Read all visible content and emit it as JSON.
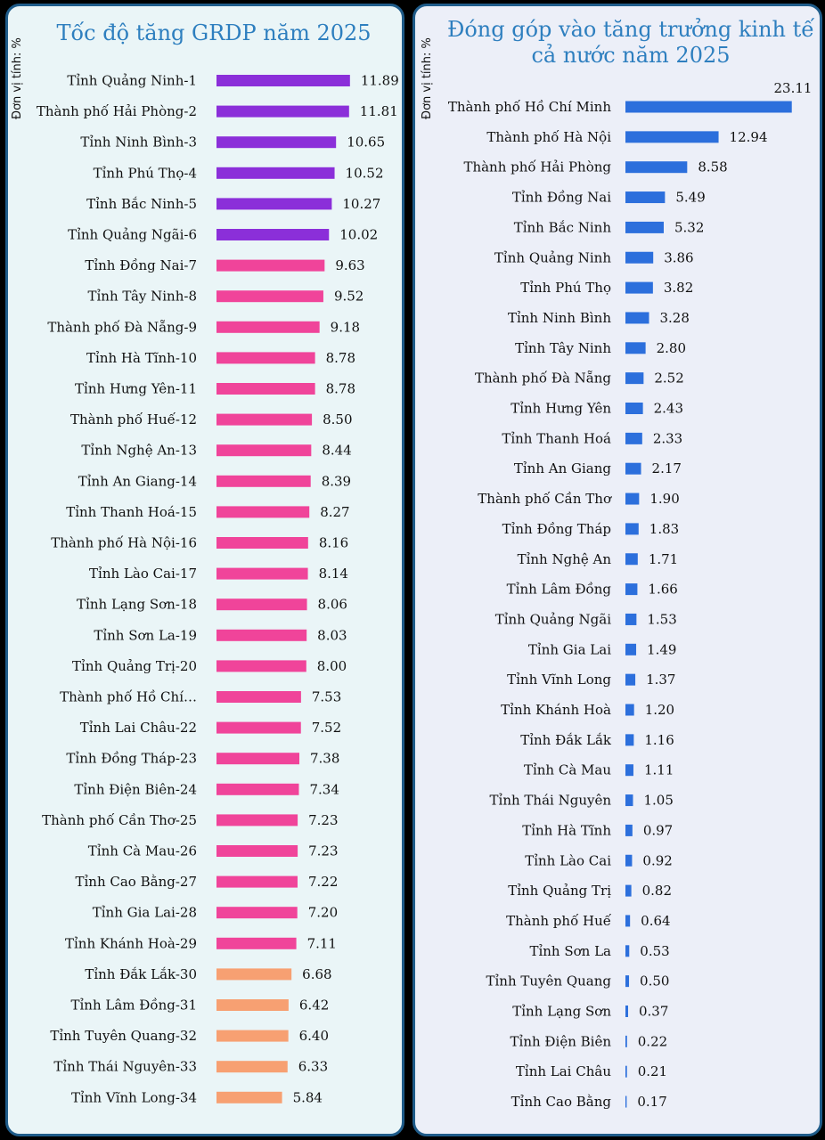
{
  "left": {
    "title": "Tốc độ tăng GRDP năm 2025",
    "unit_label": "Đơn vị tính: %"
  },
  "right": {
    "title_line1": "Đóng góp vào tăng trưởng kinh tế",
    "title_line2": "cả nước năm 2025",
    "unit_label": "Đơn vị tính: %"
  },
  "chart_data": [
    {
      "type": "bar",
      "orientation": "horizontal",
      "title": "Tốc độ tăng GRDP năm 2025",
      "ylabel": "Đơn vị tính: %",
      "colors": {
        "top_group": "#8b2fd9",
        "middle_group": "#f0449a",
        "bottom_group": "#f7a072"
      },
      "categories": [
        "Tỉnh Quảng Ninh-1",
        "Thành phố Hải Phòng-2",
        "Tỉnh Ninh Bình-3",
        "Tỉnh Phú Thọ-4",
        "Tỉnh Bắc Ninh-5",
        "Tỉnh Quảng Ngãi-6",
        "Tỉnh Đồng Nai-7",
        "Tỉnh Tây Ninh-8",
        "Thành phố Đà Nẵng-9",
        "Tỉnh Hà Tĩnh-10",
        "Tỉnh Hưng Yên-11",
        "Thành phố Huế-12",
        "Tỉnh Nghệ An-13",
        "Tỉnh An Giang-14",
        "Tỉnh Thanh Hoá-15",
        "Thành phố Hà Nội-16",
        "Tỉnh Lào Cai-17",
        "Tỉnh Lạng Sơn-18",
        "Tỉnh Sơn La-19",
        "Tỉnh Quảng Trị-20",
        "Thành phố Hồ Chí…",
        "Tỉnh Lai Châu-22",
        "Tỉnh Đồng Tháp-23",
        "Tỉnh Điện Biên-24",
        "Thành phố Cần Thơ-25",
        "Tỉnh Cà Mau-26",
        "Tỉnh Cao Bằng-27",
        "Tỉnh Gia Lai-28",
        "Tỉnh Khánh Hoà-29",
        "Tỉnh Đắk Lắk-30",
        "Tỉnh Lâm Đồng-31",
        "Tỉnh Tuyên Quang-32",
        "Tỉnh Thái Nguyên-33",
        "Tỉnh Vĩnh Long-34"
      ],
      "values": [
        11.89,
        11.81,
        10.65,
        10.52,
        10.27,
        10.02,
        9.63,
        9.52,
        9.18,
        8.78,
        8.78,
        8.5,
        8.44,
        8.39,
        8.27,
        8.16,
        8.14,
        8.06,
        8.03,
        8.0,
        7.53,
        7.52,
        7.38,
        7.34,
        7.23,
        7.23,
        7.22,
        7.2,
        7.11,
        6.68,
        6.42,
        6.4,
        6.33,
        5.84
      ],
      "value_labels": [
        "11.89",
        "11.81",
        "10.65",
        "10.52",
        "10.27",
        "10.02",
        "9.63",
        "9.52",
        "9.18",
        "8.78",
        "8.78",
        "8.50",
        "8.44",
        "8.39",
        "8.27",
        "8.16",
        "8.14",
        "8.06",
        "8.03",
        "8.00",
        "7.53",
        "7.52",
        "7.38",
        "7.34",
        "7.23",
        "7.23",
        "7.22",
        "7.20",
        "7.11",
        "6.68",
        "6.42",
        "6.40",
        "6.33",
        "5.84"
      ],
      "color_groups": [
        "top_group",
        "top_group",
        "top_group",
        "top_group",
        "top_group",
        "top_group",
        "middle_group",
        "middle_group",
        "middle_group",
        "middle_group",
        "middle_group",
        "middle_group",
        "middle_group",
        "middle_group",
        "middle_group",
        "middle_group",
        "middle_group",
        "middle_group",
        "middle_group",
        "middle_group",
        "middle_group",
        "middle_group",
        "middle_group",
        "middle_group",
        "middle_group",
        "middle_group",
        "middle_group",
        "middle_group",
        "middle_group",
        "bottom_group",
        "bottom_group",
        "bottom_group",
        "bottom_group",
        "bottom_group"
      ],
      "xlim": [
        0,
        12
      ]
    },
    {
      "type": "bar",
      "orientation": "horizontal",
      "title": "Đóng góp vào tăng trưởng kinh tế cả nước năm 2025",
      "ylabel": "Đơn vị tính: %",
      "colors": {
        "bar": "#2c6fdc"
      },
      "categories": [
        "Thành phố Hồ Chí Minh",
        "Thành phố Hà Nội",
        "Thành phố Hải Phòng",
        "Tỉnh Đồng Nai",
        "Tỉnh Bắc Ninh",
        "Tỉnh Quảng Ninh",
        "Tỉnh Phú Thọ",
        "Tỉnh Ninh Bình",
        "Tỉnh Tây Ninh",
        "Thành phố Đà Nẵng",
        "Tỉnh Hưng Yên",
        "Tỉnh Thanh Hoá",
        "Tỉnh An Giang",
        "Thành phố Cần Thơ",
        "Tỉnh Đồng Tháp",
        "Tỉnh Nghệ An",
        "Tỉnh Lâm Đồng",
        "Tỉnh Quảng Ngãi",
        "Tỉnh Gia Lai",
        "Tỉnh Vĩnh Long",
        "Tỉnh Khánh Hoà",
        "Tỉnh Đắk Lắk",
        "Tỉnh Cà Mau",
        "Tỉnh Thái Nguyên",
        "Tỉnh Hà Tĩnh",
        "Tỉnh Lào Cai",
        "Tỉnh Quảng Trị",
        "Thành phố Huế",
        "Tỉnh Sơn La",
        "Tỉnh Tuyên Quang",
        "Tỉnh Lạng Sơn",
        "Tỉnh Điện Biên",
        "Tỉnh Lai Châu",
        "Tỉnh Cao Bằng"
      ],
      "values": [
        23.11,
        12.94,
        8.58,
        5.49,
        5.32,
        3.86,
        3.82,
        3.28,
        2.8,
        2.52,
        2.43,
        2.33,
        2.17,
        1.9,
        1.83,
        1.71,
        1.66,
        1.53,
        1.49,
        1.37,
        1.2,
        1.16,
        1.11,
        1.05,
        0.97,
        0.92,
        0.82,
        0.64,
        0.53,
        0.5,
        0.37,
        0.22,
        0.21,
        0.17
      ],
      "value_labels": [
        "23.11",
        "12.94",
        "8.58",
        "5.49",
        "5.32",
        "3.86",
        "3.82",
        "3.28",
        "2.80",
        "2.52",
        "2.43",
        "2.33",
        "2.17",
        "1.90",
        "1.83",
        "1.71",
        "1.66",
        "1.53",
        "1.49",
        "1.37",
        "1.20",
        "1.16",
        "1.11",
        "1.05",
        "0.97",
        "0.92",
        "0.82",
        "0.64",
        "0.53",
        "0.50",
        "0.37",
        "0.22",
        "0.21",
        "0.17"
      ],
      "xlim": [
        0,
        23.11
      ]
    }
  ]
}
